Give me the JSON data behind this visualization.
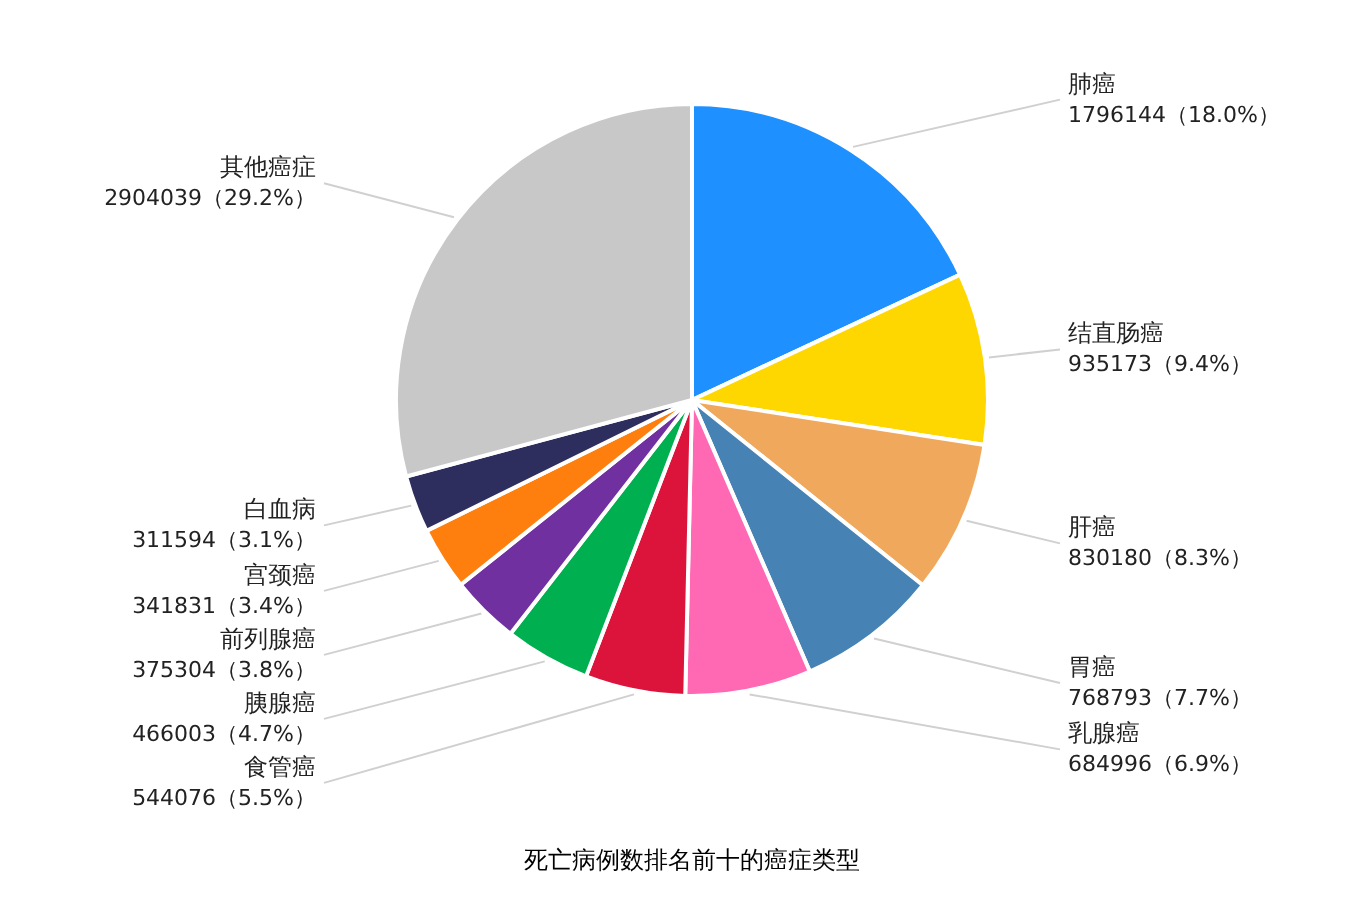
{
  "chart_data": {
    "type": "pie",
    "title": "死亡病例数排名前十的癌症类型",
    "categories": [
      "肺癌",
      "结直肠癌",
      "肝癌",
      "胃癌",
      "乳腺癌",
      "食管癌",
      "胰腺癌",
      "前列腺癌",
      "宫颈癌",
      "白血病",
      "其他癌症"
    ],
    "values": [
      1796144,
      935173,
      830180,
      768793,
      684996,
      544076,
      466003,
      375304,
      341831,
      311594,
      2904039
    ],
    "colors": [
      "#1e90ff",
      "#ffd700",
      "#f0a95c",
      "#4682b4",
      "#ff69b4",
      "#dc143c",
      "#00b050",
      "#7030a0",
      "#ff7f0e",
      "#2e2e5e",
      "#c8c8c8"
    ],
    "value_labels": [
      "1796144（18.0%）",
      "935173（9.4%）",
      "830180（8.3%）",
      "768793（7.7%）",
      "684996（6.9%）",
      "544076（5.5%）",
      "466003（4.7%）",
      "375304（3.8%）",
      "341831（3.4%）",
      "311594（3.1%）",
      "2904039（29.2%）"
    ]
  }
}
